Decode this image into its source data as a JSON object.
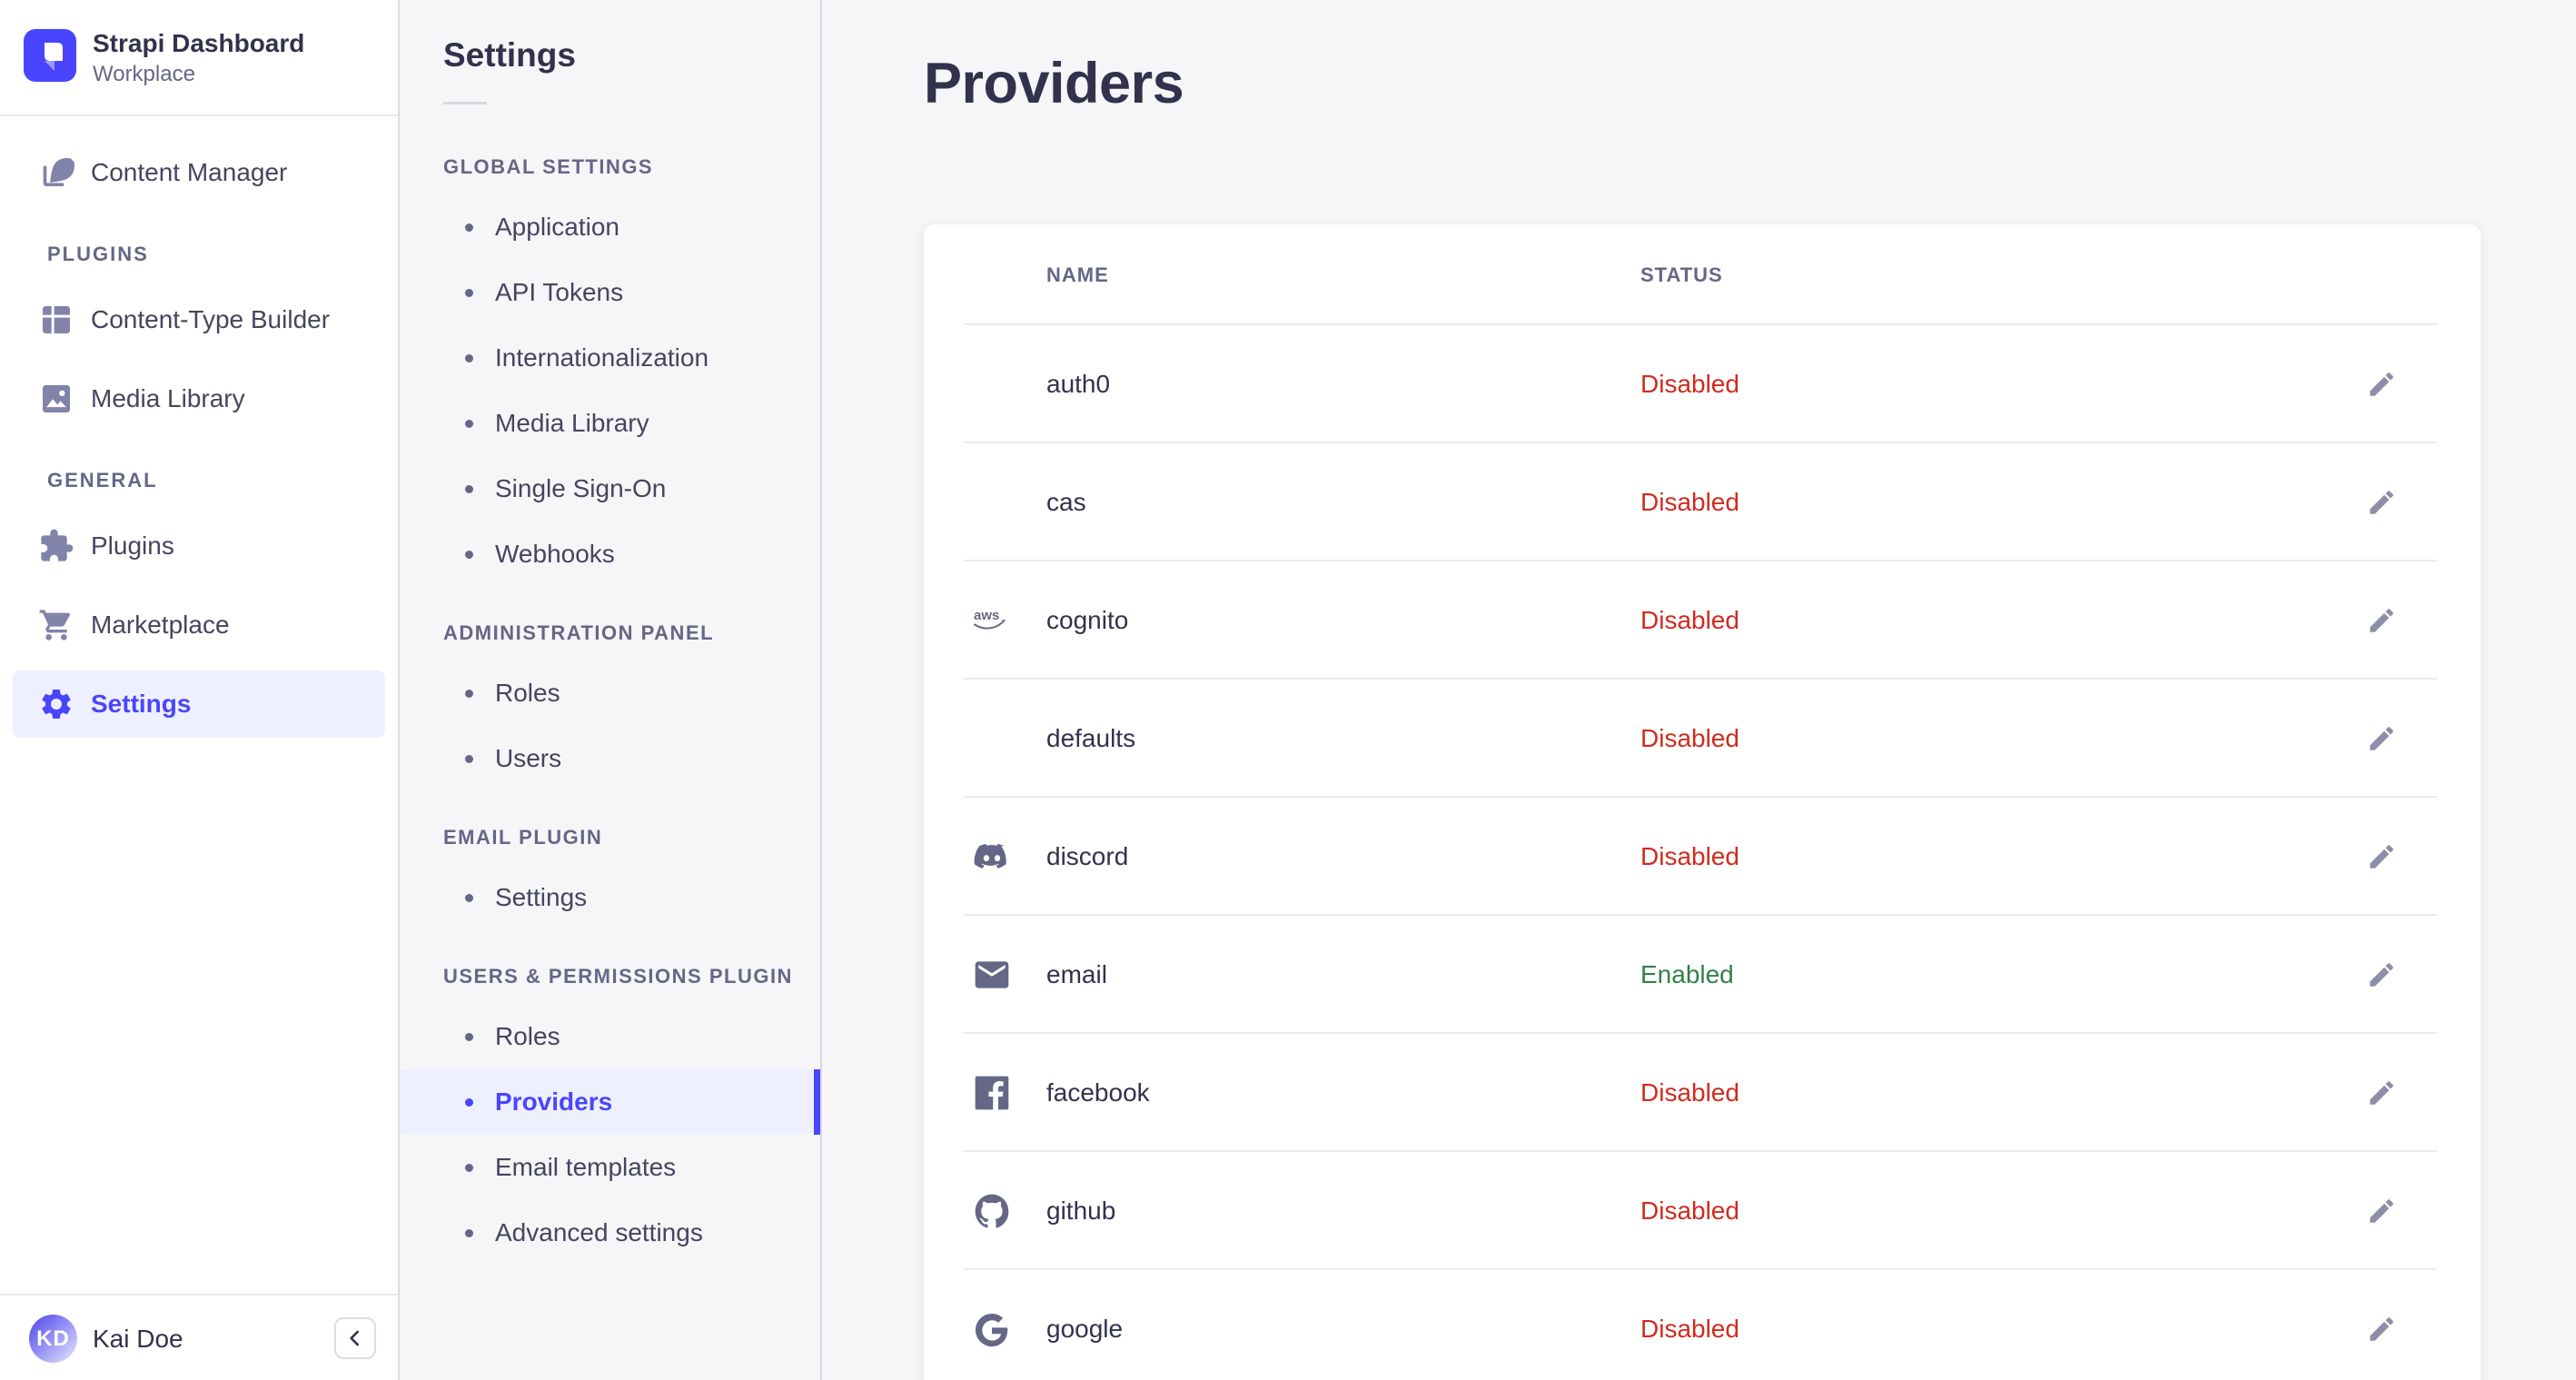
{
  "brand": {
    "title": "Strapi Dashboard",
    "subtitle": "Workplace",
    "logo_icon": "strapi-logo-icon"
  },
  "colors": {
    "primary": "#4945ff",
    "active_bg": "#eef0ff",
    "text": "#32324d",
    "muted": "#666687",
    "danger": "#d02b20",
    "success": "#328048",
    "border": "#eaeaef",
    "page_bg": "#f6f6f9"
  },
  "sidebar": {
    "top_item": {
      "label": "Content Manager",
      "icon": "feather-icon",
      "active": false
    },
    "sections": [
      {
        "label": "PLUGINS",
        "items": [
          {
            "label": "Content-Type Builder",
            "icon": "layout-icon",
            "active": false
          },
          {
            "label": "Media Library",
            "icon": "image-icon",
            "active": false
          }
        ]
      },
      {
        "label": "GENERAL",
        "items": [
          {
            "label": "Plugins",
            "icon": "puzzle-icon",
            "active": false
          },
          {
            "label": "Marketplace",
            "icon": "cart-icon",
            "active": false
          },
          {
            "label": "Settings",
            "icon": "gear-icon",
            "active": true
          }
        ]
      }
    ],
    "user": {
      "initials": "KD",
      "name": "Kai Doe"
    },
    "collapse_icon": "chevron-left-icon"
  },
  "subnav": {
    "title": "Settings",
    "sections": [
      {
        "label": "GLOBAL SETTINGS",
        "items": [
          {
            "label": "Application",
            "active": false
          },
          {
            "label": "API Tokens",
            "active": false
          },
          {
            "label": "Internationalization",
            "active": false
          },
          {
            "label": "Media Library",
            "active": false
          },
          {
            "label": "Single Sign-On",
            "active": false
          },
          {
            "label": "Webhooks",
            "active": false
          }
        ]
      },
      {
        "label": "ADMINISTRATION PANEL",
        "items": [
          {
            "label": "Roles",
            "active": false
          },
          {
            "label": "Users",
            "active": false
          }
        ]
      },
      {
        "label": "EMAIL PLUGIN",
        "items": [
          {
            "label": "Settings",
            "active": false
          }
        ]
      },
      {
        "label": "USERS & PERMISSIONS PLUGIN",
        "items": [
          {
            "label": "Roles",
            "active": false
          },
          {
            "label": "Providers",
            "active": true
          },
          {
            "label": "Email templates",
            "active": false
          },
          {
            "label": "Advanced settings",
            "active": false
          }
        ]
      }
    ]
  },
  "main": {
    "title": "Providers",
    "table": {
      "columns": [
        "NAME",
        "STATUS"
      ],
      "rows": [
        {
          "name": "auth0",
          "status": "Disabled",
          "icon": null
        },
        {
          "name": "cas",
          "status": "Disabled",
          "icon": null
        },
        {
          "name": "cognito",
          "status": "Disabled",
          "icon": "aws-icon"
        },
        {
          "name": "defaults",
          "status": "Disabled",
          "icon": null
        },
        {
          "name": "discord",
          "status": "Disabled",
          "icon": "discord-icon"
        },
        {
          "name": "email",
          "status": "Enabled",
          "icon": "email-icon"
        },
        {
          "name": "facebook",
          "status": "Disabled",
          "icon": "facebook-icon"
        },
        {
          "name": "github",
          "status": "Disabled",
          "icon": "github-icon"
        },
        {
          "name": "google",
          "status": "Disabled",
          "icon": "google-icon"
        }
      ],
      "edit_icon": "pencil-icon"
    }
  },
  "help": {
    "label": "?"
  }
}
